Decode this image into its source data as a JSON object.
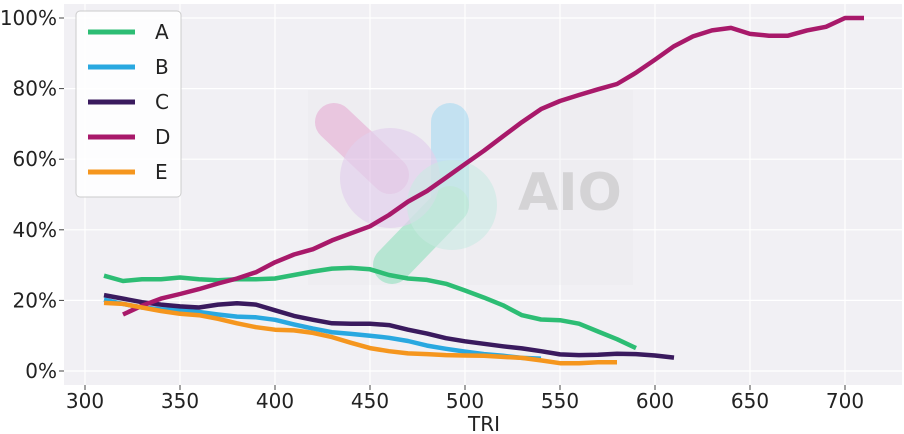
{
  "chart_data": {
    "type": "line",
    "xlabel": "TRI",
    "ylabel": "",
    "xlim": [
      295,
      725
    ],
    "ylim": [
      0,
      1.02
    ],
    "x_ticks": [
      300,
      350,
      400,
      450,
      500,
      550,
      600,
      650,
      700
    ],
    "y_ticks": [
      0,
      0.2,
      0.4,
      0.6,
      0.8,
      1.0
    ],
    "y_tick_labels": [
      "0%",
      "20%",
      "40%",
      "60%",
      "80%",
      "100%"
    ],
    "grid": true,
    "legend_position": "top-left",
    "watermark_text": "AIO",
    "series": [
      {
        "name": "A",
        "color": "#2dbd74",
        "x": [
          310,
          320,
          330,
          340,
          350,
          360,
          370,
          380,
          390,
          400,
          410,
          420,
          430,
          440,
          450,
          460,
          470,
          480,
          490,
          500,
          510,
          520,
          530,
          540,
          550,
          560,
          570,
          580,
          590
        ],
        "y": [
          0.27,
          0.255,
          0.26,
          0.26,
          0.265,
          0.26,
          0.257,
          0.26,
          0.26,
          0.262,
          0.272,
          0.282,
          0.29,
          0.292,
          0.288,
          0.272,
          0.262,
          0.258,
          0.247,
          0.228,
          0.208,
          0.186,
          0.158,
          0.146,
          0.144,
          0.134,
          0.112,
          0.09,
          0.065
        ]
      },
      {
        "name": "B",
        "color": "#29a8e0",
        "x": [
          310,
          320,
          330,
          340,
          350,
          360,
          370,
          380,
          390,
          400,
          410,
          420,
          430,
          440,
          450,
          460,
          470,
          480,
          490,
          500,
          510,
          520,
          530,
          540
        ],
        "y": [
          0.202,
          0.19,
          0.18,
          0.175,
          0.172,
          0.167,
          0.16,
          0.154,
          0.152,
          0.145,
          0.132,
          0.12,
          0.11,
          0.105,
          0.1,
          0.094,
          0.085,
          0.072,
          0.063,
          0.055,
          0.048,
          0.043,
          0.037,
          0.035
        ]
      },
      {
        "name": "C",
        "color": "#3a1a5e",
        "x": [
          310,
          320,
          330,
          340,
          350,
          360,
          370,
          380,
          390,
          400,
          410,
          420,
          430,
          440,
          450,
          460,
          470,
          480,
          490,
          500,
          510,
          520,
          530,
          540,
          550,
          560,
          570,
          580,
          590,
          600,
          610
        ],
        "y": [
          0.215,
          0.205,
          0.195,
          0.188,
          0.183,
          0.18,
          0.188,
          0.192,
          0.188,
          0.172,
          0.156,
          0.145,
          0.135,
          0.134,
          0.134,
          0.13,
          0.117,
          0.106,
          0.093,
          0.084,
          0.077,
          0.07,
          0.064,
          0.056,
          0.047,
          0.045,
          0.046,
          0.049,
          0.048,
          0.044,
          0.038
        ]
      },
      {
        "name": "D",
        "color": "#a8196a",
        "x": [
          320,
          330,
          340,
          350,
          360,
          370,
          380,
          390,
          400,
          410,
          420,
          430,
          440,
          450,
          460,
          470,
          480,
          490,
          500,
          510,
          520,
          530,
          540,
          550,
          560,
          570,
          580,
          590,
          600,
          610,
          620,
          630,
          640,
          650,
          660,
          670,
          680,
          690,
          700,
          710
        ],
        "y": [
          0.16,
          0.185,
          0.205,
          0.218,
          0.232,
          0.248,
          0.262,
          0.28,
          0.308,
          0.33,
          0.345,
          0.37,
          0.39,
          0.41,
          0.442,
          0.48,
          0.51,
          0.548,
          0.586,
          0.624,
          0.665,
          0.705,
          0.742,
          0.765,
          0.782,
          0.798,
          0.813,
          0.845,
          0.882,
          0.92,
          0.948,
          0.965,
          0.972,
          0.955,
          0.95,
          0.95,
          0.965,
          0.975,
          1.0,
          1.0
        ]
      },
      {
        "name": "E",
        "color": "#f5961e",
        "x": [
          310,
          320,
          330,
          340,
          350,
          360,
          370,
          380,
          390,
          400,
          410,
          420,
          430,
          440,
          450,
          460,
          470,
          480,
          490,
          500,
          510,
          520,
          530,
          540,
          550,
          560,
          570,
          580
        ],
        "y": [
          0.193,
          0.19,
          0.18,
          0.17,
          0.162,
          0.158,
          0.148,
          0.135,
          0.124,
          0.117,
          0.115,
          0.108,
          0.096,
          0.08,
          0.065,
          0.056,
          0.05,
          0.048,
          0.045,
          0.044,
          0.043,
          0.04,
          0.037,
          0.03,
          0.022,
          0.022,
          0.025,
          0.025
        ]
      }
    ]
  }
}
